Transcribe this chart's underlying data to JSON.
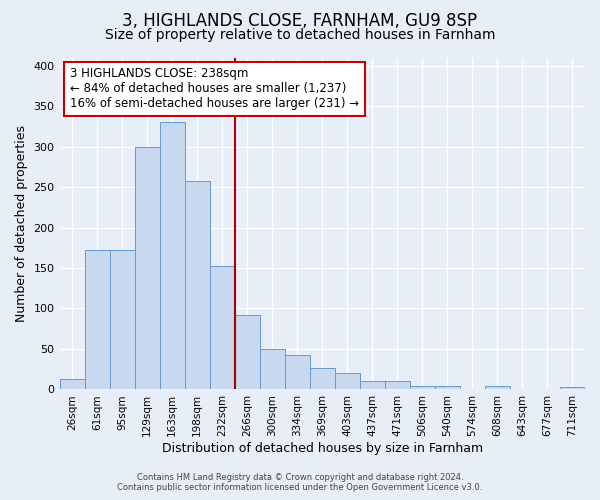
{
  "title": "3, HIGHLANDS CLOSE, FARNHAM, GU9 8SP",
  "subtitle": "Size of property relative to detached houses in Farnham",
  "xlabel": "Distribution of detached houses by size in Farnham",
  "ylabel": "Number of detached properties",
  "footer_line1": "Contains HM Land Registry data © Crown copyright and database right 2024.",
  "footer_line2": "Contains public sector information licensed under the Open Government Licence v3.0.",
  "bar_labels": [
    "26sqm",
    "61sqm",
    "95sqm",
    "129sqm",
    "163sqm",
    "198sqm",
    "232sqm",
    "266sqm",
    "300sqm",
    "334sqm",
    "369sqm",
    "403sqm",
    "437sqm",
    "471sqm",
    "506sqm",
    "540sqm",
    "574sqm",
    "608sqm",
    "643sqm",
    "677sqm",
    "711sqm"
  ],
  "bar_heights": [
    13,
    172,
    172,
    300,
    330,
    258,
    153,
    92,
    50,
    43,
    26,
    20,
    11,
    10,
    4,
    4,
    0,
    4,
    0,
    1,
    3
  ],
  "bar_color": "#c8d8ee",
  "bar_edge_color": "#6699cc",
  "marker_bin_index": 6,
  "marker_color": "#aa0000",
  "annotation_title": "3 HIGHLANDS CLOSE: 238sqm",
  "annotation_line1": "← 84% of detached houses are smaller (1,237)",
  "annotation_line2": "16% of semi-detached houses are larger (231) →",
  "annotation_box_color": "#ffffff",
  "annotation_box_edge": "#cc0000",
  "ylim": [
    0,
    410
  ],
  "yticks": [
    0,
    50,
    100,
    150,
    200,
    250,
    300,
    350,
    400
  ],
  "background_color": "#e8eef8",
  "plot_background_color": "#e8eef8",
  "grid_color": "#ffffff",
  "title_fontsize": 12,
  "subtitle_fontsize": 10
}
